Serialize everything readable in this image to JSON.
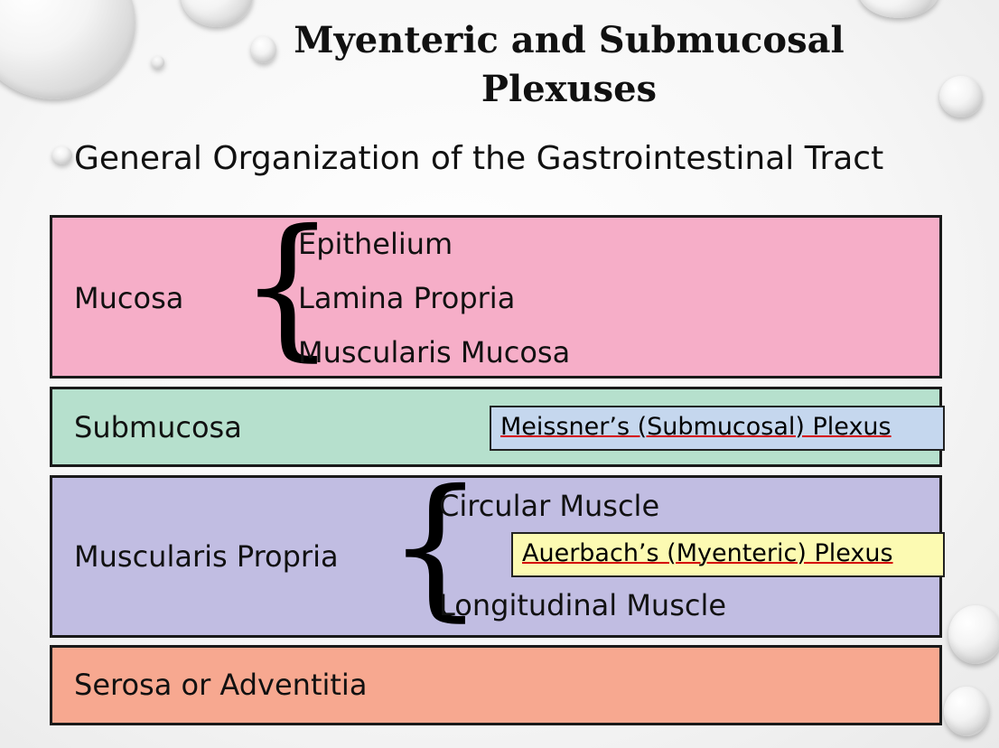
{
  "title": {
    "line1": "Myenteric and Submucosal",
    "line2": "Plexuses"
  },
  "subtitle": "General Organization of the Gastrointestinal Tract",
  "layers": {
    "mucosa": {
      "label": "Mucosa",
      "items": [
        "Epithelium",
        "Lamina Propria",
        "Muscularis Mucosa"
      ],
      "color": "#f6aec8"
    },
    "submucosa": {
      "label": "Submucosa",
      "plexus": "Meissner’s (Submucosal) Plexus",
      "color": "#b6e0cd",
      "plexus_color": "#c5d7ee"
    },
    "muscularis": {
      "label": "Muscularis Propria",
      "items": [
        "Circular Muscle",
        "Longitudinal Muscle"
      ],
      "plexus": "Auerbach’s (Myenteric) Plexus",
      "color": "#c1bde2",
      "plexus_color": "#fcfab2"
    },
    "serosa": {
      "label": "Serosa or Adventitia",
      "color": "#f7a890"
    }
  }
}
